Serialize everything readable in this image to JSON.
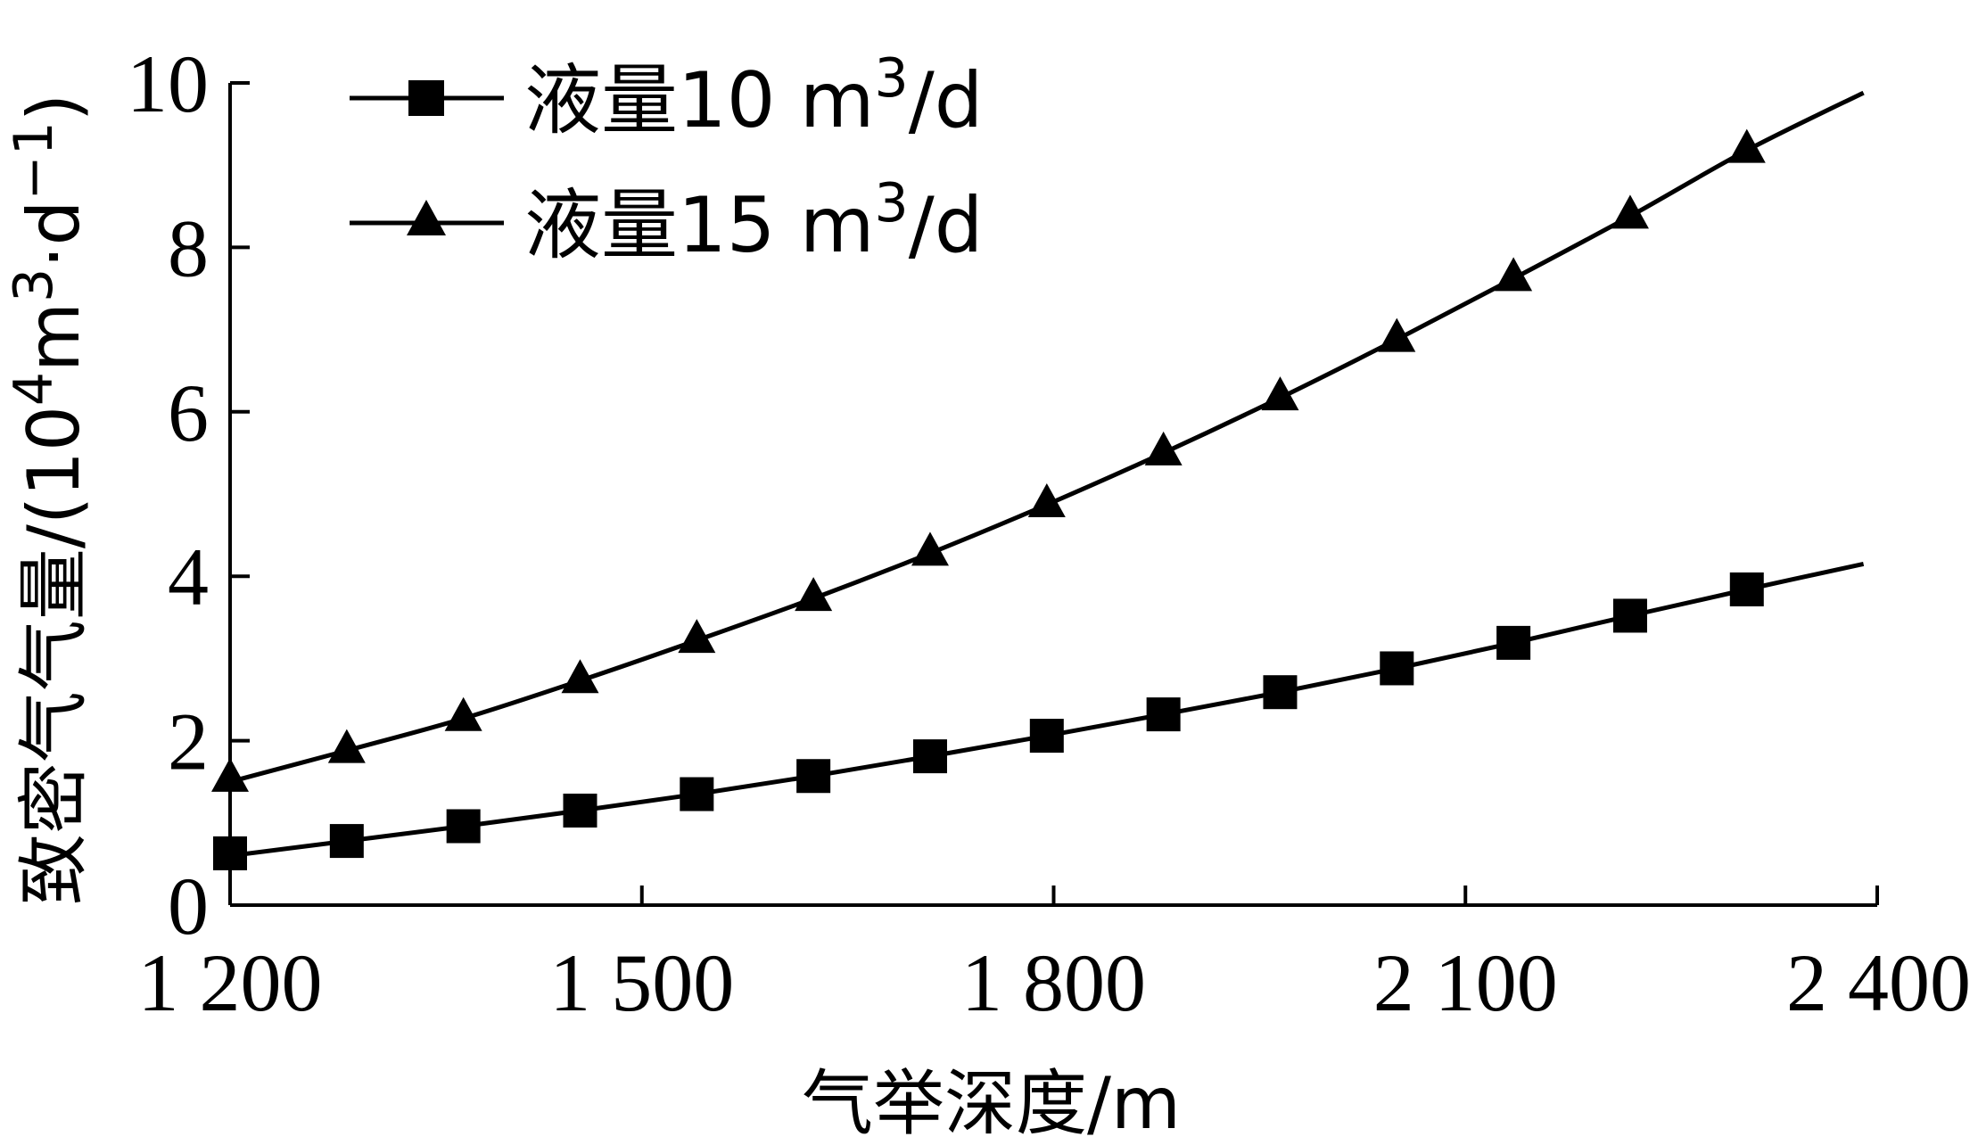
{
  "chart_data": {
    "type": "line",
    "xlabel": "气举深度/m",
    "ylabel": {
      "main": "致密气气量/(10",
      "sup1": "4",
      "mid": "m",
      "sup2": "3",
      "mid2": "·d",
      "sup3": "−1",
      "end": ")"
    },
    "xlim": [
      1200,
      2400
    ],
    "ylim": [
      0,
      10
    ],
    "x_ticks": [
      1200,
      1500,
      1800,
      2100,
      2400
    ],
    "x_tick_labels": [
      "1 200",
      "1 500",
      "1 800",
      "2 100",
      "2 400"
    ],
    "y_ticks": [
      0,
      2,
      4,
      6,
      8,
      10
    ],
    "y_tick_labels": [
      "0",
      "2",
      "4",
      "6",
      "8",
      "10"
    ],
    "legend_position": "top-left",
    "series": [
      {
        "name": {
          "main": "液量10 m",
          "sup": "3",
          "end": "/d"
        },
        "marker": "square",
        "x": [
          1200,
          1285,
          1370,
          1455,
          1540,
          1625,
          1710,
          1795,
          1880,
          1965,
          2050,
          2135,
          2220,
          2305
        ],
        "y": [
          0.63,
          0.78,
          0.96,
          1.15,
          1.35,
          1.57,
          1.81,
          2.06,
          2.32,
          2.59,
          2.88,
          3.19,
          3.52,
          3.84
        ],
        "line_x": [
          1200,
          2390
        ],
        "line_y": [
          0.6,
          4.15
        ]
      },
      {
        "name": {
          "main": "液量15 m",
          "sup": "3",
          "end": "/d"
        },
        "marker": "triangle",
        "x": [
          1200,
          1285,
          1370,
          1455,
          1540,
          1625,
          1710,
          1795,
          1880,
          1965,
          2050,
          2135,
          2220,
          2305
        ],
        "y": [
          1.53,
          1.88,
          2.27,
          2.73,
          3.22,
          3.73,
          4.28,
          4.87,
          5.5,
          6.17,
          6.88,
          7.62,
          8.38,
          9.18
        ],
        "line_x": [
          1200,
          2390
        ],
        "line_y": [
          1.5,
          9.88
        ]
      }
    ]
  }
}
